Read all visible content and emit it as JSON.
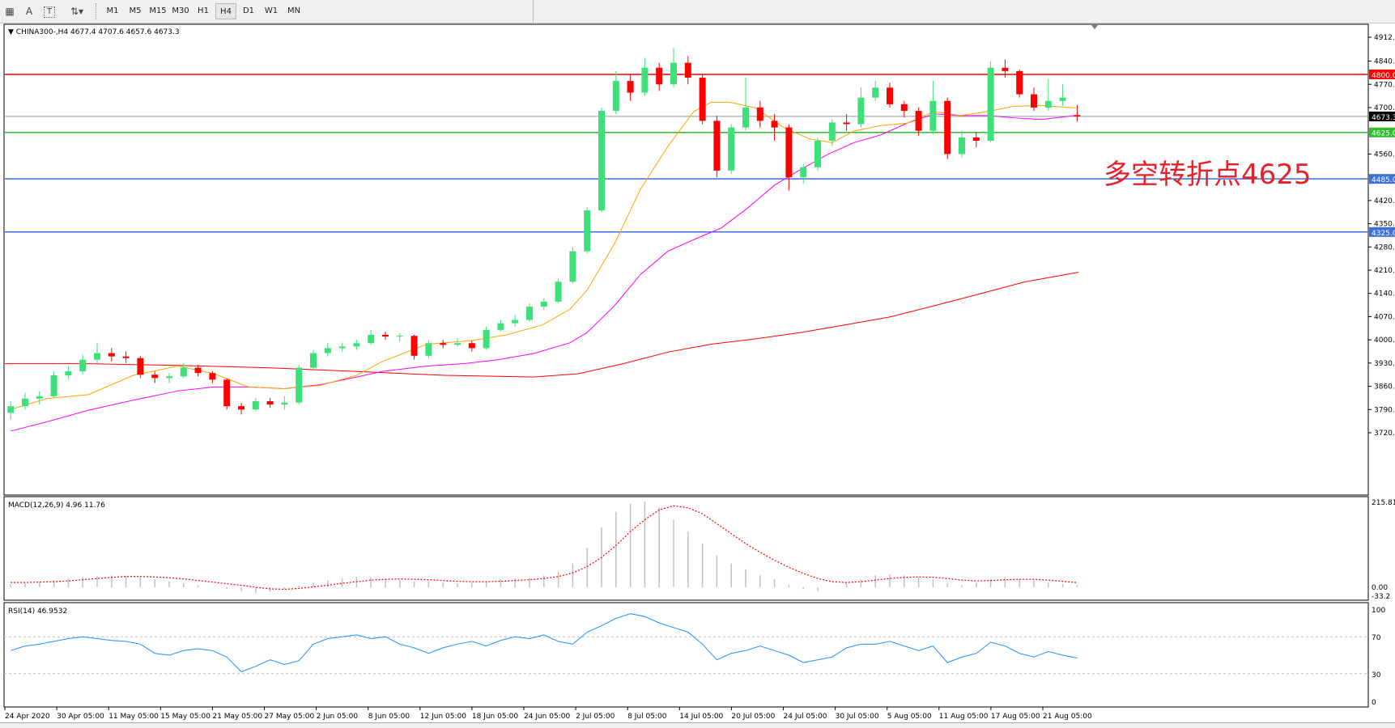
{
  "toolbar": {
    "icons": [
      "grid-icon",
      "text-icon",
      "text-label-icon",
      "arrows-icon"
    ],
    "text_icon": "A",
    "periods": [
      "M1",
      "M5",
      "M15",
      "M30",
      "H1",
      "H4",
      "D1",
      "W1",
      "MN"
    ],
    "active_period": "H4"
  },
  "chart_data": [
    {
      "type": "candlestick",
      "title": "CHINA300-,H4  4677.4 4707.6 4657.6 4673.3",
      "ylim": [
        3720,
        4912
      ],
      "y_ticks": [
        "4912.0",
        "4840.0",
        "4770.0",
        "4700.0",
        "4560.0",
        "4420.0",
        "4350.0",
        "4280.0",
        "4210.0",
        "4140.0",
        "4070.0",
        "4000.0",
        "3930.0",
        "3860.0",
        "3790.0",
        "3720.0"
      ],
      "y_tick_values": [
        4912,
        4840,
        4770,
        4700,
        4560,
        4420,
        4350,
        4280,
        4210,
        4140,
        4070,
        4000,
        3930,
        3860,
        3790,
        3720
      ],
      "x_ticks": [
        "24 Apr 2020",
        "30 Apr 05:00",
        "11 May 05:00",
        "15 May 05:00",
        "21 May 05:00",
        "27 May 05:00",
        "2 Jun 05:00",
        "8 Jun 05:00",
        "12 Jun 05:00",
        "18 Jun 05:00",
        "24 Jun 05:00",
        "2 Jul 05:00",
        "8 Jul 05:00",
        "14 Jul 05:00",
        "20 Jul 05:00",
        "24 Jul 05:00",
        "30 Jul 05:00",
        "5 Aug 05:00",
        "11 Aug 05:00",
        "17 Aug 05:00",
        "21 Aug 05:00"
      ],
      "colors": {
        "bull": "#3ee07a",
        "bear": "#ff0000",
        "ma_fast": "#ffa500",
        "ma_mid": "#ff00ff",
        "ma_slow": "#ff0000"
      },
      "ohlc": [
        [
          3780,
          3815,
          3760,
          3800
        ],
        [
          3800,
          3840,
          3790,
          3823
        ],
        [
          3823,
          3845,
          3805,
          3830
        ],
        [
          3830,
          3905,
          3825,
          3893
        ],
        [
          3893,
          3920,
          3880,
          3905
        ],
        [
          3905,
          3955,
          3895,
          3940
        ],
        [
          3940,
          3990,
          3930,
          3960
        ],
        [
          3960,
          3975,
          3935,
          3950
        ],
        [
          3950,
          3965,
          3930,
          3945
        ],
        [
          3945,
          3952,
          3885,
          3895
        ],
        [
          3895,
          3905,
          3870,
          3885
        ],
        [
          3885,
          3900,
          3870,
          3890
        ],
        [
          3890,
          3930,
          3885,
          3916
        ],
        [
          3916,
          3925,
          3890,
          3900
        ],
        [
          3900,
          3905,
          3870,
          3880
        ],
        [
          3880,
          3885,
          3790,
          3800
        ],
        [
          3800,
          3810,
          3775,
          3790
        ],
        [
          3790,
          3825,
          3785,
          3815
        ],
        [
          3815,
          3825,
          3795,
          3805
        ],
        [
          3805,
          3830,
          3790,
          3811
        ],
        [
          3811,
          3925,
          3805,
          3916
        ],
        [
          3916,
          3970,
          3910,
          3960
        ],
        [
          3960,
          3990,
          3950,
          3975
        ],
        [
          3975,
          3992,
          3965,
          3980
        ],
        [
          3980,
          4000,
          3970,
          3990
        ],
        [
          3990,
          4030,
          3985,
          4015
        ],
        [
          4015,
          4025,
          4000,
          4010
        ],
        [
          4010,
          4020,
          3995,
          4012
        ],
        [
          4012,
          4015,
          3940,
          3952
        ],
        [
          3952,
          4000,
          3945,
          3990
        ],
        [
          3990,
          4000,
          3975,
          3985
        ],
        [
          3985,
          4005,
          3980,
          3990
        ],
        [
          3990,
          3998,
          3965,
          3975
        ],
        [
          3975,
          4040,
          3970,
          4030
        ],
        [
          4030,
          4060,
          4025,
          4050
        ],
        [
          4050,
          4075,
          4040,
          4060
        ],
        [
          4060,
          4110,
          4055,
          4100
        ],
        [
          4100,
          4125,
          4090,
          4115
        ],
        [
          4115,
          4185,
          4110,
          4175
        ],
        [
          4175,
          4280,
          4170,
          4267
        ],
        [
          4267,
          4400,
          4260,
          4390
        ],
        [
          4390,
          4700,
          4385,
          4690
        ],
        [
          4690,
          4810,
          4680,
          4780
        ],
        [
          4780,
          4800,
          4720,
          4745
        ],
        [
          4745,
          4850,
          4735,
          4820
        ],
        [
          4820,
          4835,
          4750,
          4770
        ],
        [
          4770,
          4880,
          4760,
          4835
        ],
        [
          4835,
          4855,
          4770,
          4790
        ],
        [
          4790,
          4800,
          4650,
          4660
        ],
        [
          4660,
          4675,
          4490,
          4510
        ],
        [
          4510,
          4650,
          4500,
          4640
        ],
        [
          4640,
          4790,
          4630,
          4700
        ],
        [
          4700,
          4720,
          4640,
          4660
        ],
        [
          4660,
          4680,
          4600,
          4640
        ],
        [
          4640,
          4650,
          4450,
          4490
        ],
        [
          4490,
          4530,
          4470,
          4520
        ],
        [
          4520,
          4610,
          4510,
          4600
        ],
        [
          4600,
          4665,
          4585,
          4655
        ],
        [
          4655,
          4680,
          4630,
          4650
        ],
        [
          4650,
          4760,
          4640,
          4730
        ],
        [
          4730,
          4780,
          4720,
          4760
        ],
        [
          4760,
          4775,
          4700,
          4710
        ],
        [
          4710,
          4720,
          4670,
          4690
        ],
        [
          4690,
          4700,
          4615,
          4630
        ],
        [
          4630,
          4780,
          4620,
          4720
        ],
        [
          4720,
          4730,
          4545,
          4560
        ],
        [
          4560,
          4630,
          4550,
          4610
        ],
        [
          4610,
          4625,
          4580,
          4600
        ],
        [
          4600,
          4840,
          4595,
          4820
        ],
        [
          4820,
          4845,
          4790,
          4810
        ],
        [
          4810,
          4815,
          4730,
          4740
        ],
        [
          4740,
          4760,
          4690,
          4700
        ],
        [
          4700,
          4785,
          4690,
          4720
        ],
        [
          4720,
          4770,
          4705,
          4730
        ],
        [
          4677.4,
          4707.6,
          4657.6,
          4673.3
        ]
      ],
      "ma_fast": [
        [
          0,
          3790
        ],
        [
          2.5,
          3823
        ],
        [
          5.4,
          3835
        ],
        [
          8.5,
          3893
        ],
        [
          11.6,
          3921
        ],
        [
          14.1,
          3898
        ],
        [
          16.5,
          3858
        ],
        [
          19,
          3853
        ],
        [
          21.5,
          3863
        ],
        [
          24,
          3893
        ],
        [
          25.8,
          3935
        ],
        [
          28.9,
          3987
        ],
        [
          32,
          3998
        ],
        [
          34.4,
          4015
        ],
        [
          36.9,
          4045
        ],
        [
          38.8,
          4092
        ],
        [
          40,
          4150
        ],
        [
          41.9,
          4290
        ],
        [
          43.7,
          4454
        ],
        [
          45.6,
          4583
        ],
        [
          47.4,
          4688
        ],
        [
          48.6,
          4716
        ],
        [
          49.9,
          4716
        ],
        [
          51.7,
          4699
        ],
        [
          53.6,
          4641
        ],
        [
          55.4,
          4606
        ],
        [
          57,
          4594
        ],
        [
          58.5,
          4629
        ],
        [
          60.4,
          4646
        ],
        [
          62.2,
          4653
        ],
        [
          64.1,
          4688
        ],
        [
          65.9,
          4676
        ],
        [
          67.8,
          4688
        ],
        [
          69.6,
          4704
        ],
        [
          71.5,
          4706
        ],
        [
          73.9,
          4699
        ]
      ],
      "ma_mid": [
        [
          0,
          3725
        ],
        [
          2.5,
          3753
        ],
        [
          5.4,
          3788
        ],
        [
          8.5,
          3818
        ],
        [
          11.6,
          3846
        ],
        [
          14.1,
          3858
        ],
        [
          16.5,
          3858
        ],
        [
          19,
          3853
        ],
        [
          21.5,
          3865
        ],
        [
          24,
          3888
        ],
        [
          25.8,
          3905
        ],
        [
          28.9,
          3921
        ],
        [
          31.4,
          3928
        ],
        [
          33.8,
          3940
        ],
        [
          36.3,
          3959
        ],
        [
          38.8,
          3991
        ],
        [
          40,
          4022
        ],
        [
          41.9,
          4103
        ],
        [
          43.7,
          4197
        ],
        [
          45.6,
          4267
        ],
        [
          47.4,
          4302
        ],
        [
          49.3,
          4337
        ],
        [
          51.1,
          4396
        ],
        [
          53,
          4466
        ],
        [
          54.8,
          4513
        ],
        [
          56.7,
          4559
        ],
        [
          58.5,
          4594
        ],
        [
          60.4,
          4618
        ],
        [
          62.2,
          4653
        ],
        [
          64.1,
          4681
        ],
        [
          65.9,
          4676
        ],
        [
          67.8,
          4676
        ],
        [
          69.6,
          4669
        ],
        [
          71.5,
          4664
        ],
        [
          73.9,
          4676
        ]
      ],
      "ma_slow": [
        [
          -0.4,
          3928
        ],
        [
          5.4,
          3928
        ],
        [
          11.6,
          3923
        ],
        [
          17.8,
          3916
        ],
        [
          23.9,
          3905
        ],
        [
          30.1,
          3893
        ],
        [
          36.3,
          3888
        ],
        [
          39.4,
          3898
        ],
        [
          42.5,
          3928
        ],
        [
          45.6,
          3963
        ],
        [
          48.6,
          3987
        ],
        [
          51.7,
          4003
        ],
        [
          54.8,
          4022
        ],
        [
          57.9,
          4045
        ],
        [
          61,
          4069
        ],
        [
          64.1,
          4103
        ],
        [
          67.2,
          4138
        ],
        [
          70.3,
          4174
        ],
        [
          74.1,
          4204
        ]
      ],
      "levels": [
        {
          "value": 4800,
          "label": "4800.0",
          "color": "#ff0000"
        },
        {
          "value": 4673.3,
          "label": "4673.3",
          "color": "#000000",
          "line": "#8c99a6"
        },
        {
          "value": 4625,
          "label": "4625.0",
          "color": "#2ebd2e"
        },
        {
          "value": 4485,
          "label": "4485.0",
          "color": "#3f6fd8"
        },
        {
          "value": 4325,
          "label": "4325.0",
          "color": "#3f6fd8"
        }
      ],
      "annotation": "多空转折点4625",
      "annotation_color": "#e8202a"
    },
    {
      "type": "bar",
      "title": "MACD(12,26,9) 4.96 11.76",
      "ylim": [
        -33.2,
        215.81
      ],
      "y_ticks": [
        "215.81",
        "0.00",
        "-33.2"
      ],
      "histogram": [
        8,
        10,
        14,
        18,
        22,
        25,
        28,
        30,
        28,
        25,
        20,
        15,
        10,
        5,
        0,
        -5,
        -10,
        -15,
        -12,
        -5,
        5,
        12,
        18,
        22,
        25,
        25,
        22,
        18,
        15,
        15,
        12,
        10,
        12,
        15,
        20,
        22,
        25,
        30,
        40,
        60,
        100,
        150,
        190,
        210,
        215,
        200,
        170,
        140,
        110,
        80,
        60,
        45,
        30,
        20,
        5,
        -5,
        -10,
        0,
        10,
        20,
        30,
        32,
        30,
        25,
        20,
        10,
        5,
        12,
        20,
        25,
        20,
        18,
        12,
        8,
        4.96
      ],
      "signal": [
        12,
        12,
        13,
        14,
        16,
        19,
        22,
        25,
        27,
        27,
        26,
        24,
        21,
        17,
        13,
        9,
        5,
        0,
        -4,
        -5,
        -3,
        1,
        5,
        10,
        14,
        18,
        20,
        21,
        20,
        19,
        17,
        15,
        14,
        14,
        15,
        17,
        19,
        22,
        27,
        36,
        52,
        75,
        105,
        140,
        170,
        195,
        205,
        200,
        185,
        160,
        135,
        110,
        88,
        68,
        50,
        35,
        22,
        14,
        12,
        14,
        18,
        22,
        25,
        26,
        25,
        22,
        18,
        16,
        17,
        19,
        20,
        20,
        18,
        15,
        11.76
      ],
      "colors": {
        "histogram": "#c0c0c0",
        "signal": "#ff0000"
      }
    },
    {
      "type": "line",
      "title": "RSI(14) 46.9532",
      "ylim": [
        0,
        100
      ],
      "y_ticks": [
        "100",
        "70",
        "30",
        "0"
      ],
      "levels": [
        70,
        30
      ],
      "values": [
        55,
        60,
        62,
        65,
        68,
        70,
        68,
        66,
        65,
        62,
        52,
        50,
        55,
        57,
        55,
        48,
        32,
        38,
        45,
        40,
        44,
        62,
        68,
        70,
        72,
        68,
        70,
        62,
        58,
        52,
        58,
        62,
        65,
        60,
        66,
        70,
        68,
        72,
        65,
        62,
        75,
        82,
        90,
        95,
        92,
        85,
        80,
        75,
        62,
        45,
        52,
        55,
        60,
        55,
        50,
        42,
        45,
        48,
        58,
        62,
        62,
        65,
        60,
        55,
        60,
        42,
        48,
        52,
        64,
        60,
        52,
        48,
        54,
        50,
        46.9532
      ],
      "color": "#1e90ff"
    }
  ]
}
